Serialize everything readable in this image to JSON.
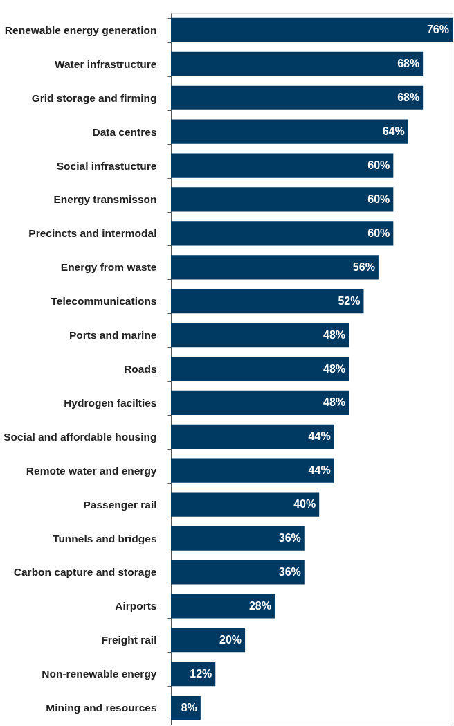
{
  "chart_data": {
    "type": "bar",
    "orientation": "horizontal",
    "categories": [
      "Renewable energy generation",
      "Water infrastructure",
      "Grid storage and firming",
      "Data centres",
      "Social infrastucture",
      "Energy transmisson",
      "Precincts and intermodal",
      "Energy from waste",
      "Telecommunications",
      "Ports and marine",
      "Roads",
      "Hydrogen facilties",
      "Social and affordable housing",
      "Remote water and energy",
      "Passenger rail",
      "Tunnels and bridges",
      "Carbon capture and storage",
      "Airports",
      "Freight rail",
      "Non-renewable energy",
      "Mining and resources"
    ],
    "values": [
      76,
      68,
      68,
      64,
      60,
      60,
      60,
      56,
      52,
      48,
      48,
      48,
      44,
      44,
      40,
      36,
      36,
      28,
      20,
      12,
      8
    ],
    "value_labels": [
      "76%",
      "68%",
      "68%",
      "64%",
      "60%",
      "60%",
      "60%",
      "56%",
      "52%",
      "48%",
      "48%",
      "48%",
      "44%",
      "44%",
      "40%",
      "36%",
      "36%",
      "28%",
      "20%",
      "12%",
      "8%"
    ],
    "color": "#003a63",
    "xlim": [
      0,
      76
    ],
    "tick_labels": "y"
  }
}
